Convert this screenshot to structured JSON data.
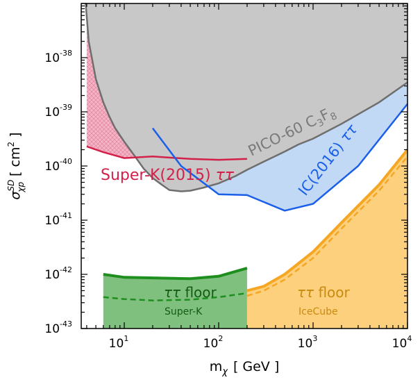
{
  "chart_data": {
    "type": "area",
    "title": "",
    "xlabel": {
      "base": "m",
      "sub": "χ",
      "unit": "[ GeV ]"
    },
    "ylabel": {
      "base": "σ",
      "sup": "SD",
      "sub": "χp",
      "unit": "[ cm",
      "unit_sup": "2",
      "unit_end": " ]"
    },
    "xscale": "log",
    "yscale": "log",
    "xlim": [
      3.5,
      10000
    ],
    "ylim": [
      1e-43,
      1e-37
    ],
    "grid": false,
    "legend": "none",
    "x_ticks": [
      {
        "value": 10,
        "base": "10",
        "exp": "1"
      },
      {
        "value": 100,
        "base": "10",
        "exp": "2"
      },
      {
        "value": 1000,
        "base": "10",
        "exp": "3"
      },
      {
        "value": 10000,
        "base": "10",
        "exp": "4"
      }
    ],
    "y_ticks": [
      {
        "value": 1e-43,
        "base": "10",
        "exp": "-43"
      },
      {
        "value": 1e-42,
        "base": "10",
        "exp": "-42"
      },
      {
        "value": 1e-41,
        "base": "10",
        "exp": "-41"
      },
      {
        "value": 1e-40,
        "base": "10",
        "exp": "-40"
      },
      {
        "value": 1e-39,
        "base": "10",
        "exp": "-39"
      },
      {
        "value": 1e-38,
        "base": "10",
        "exp": "-38"
      }
    ],
    "series": [
      {
        "name": "PICO-60 C3F8",
        "color": "#6e6e6e",
        "fill": "#c8c8c8",
        "style": "solid",
        "x": [
          3.9,
          4.2,
          5,
          6,
          7,
          8,
          10,
          13,
          16,
          20,
          25,
          30,
          40,
          50,
          70,
          100,
          150,
          200,
          300,
          500,
          700,
          1000,
          2000,
          3000,
          5000,
          10000
        ],
        "y": [
          1e-37,
          2e-38,
          4e-39,
          1.5e-39,
          8e-40,
          5e-40,
          2.8e-40,
          1.5e-40,
          9e-41,
          6e-41,
          4.5e-41,
          3.6e-41,
          3.4e-41,
          3.5e-41,
          4e-41,
          4.8e-41,
          6.5e-41,
          8.5e-41,
          1.2e-40,
          1.85e-40,
          2.5e-40,
          3.2e-40,
          6e-40,
          9e-40,
          1.5e-39,
          3.5e-39
        ]
      },
      {
        "name": "Super-K(2015) ττ",
        "color": "#d3204a",
        "fill": "#f4b6c6",
        "style": "solid",
        "x": [
          4,
          6,
          10,
          20,
          50,
          100,
          200
        ],
        "y": [
          2.3e-40,
          1.8e-40,
          1.4e-40,
          1.5e-40,
          1.35e-40,
          1.3e-40,
          1.35e-40
        ]
      },
      {
        "name": "IC(2016) ττ",
        "color": "#1a5fe8",
        "fill": "#c2d9f6",
        "style": "solid",
        "x": [
          20,
          40,
          100,
          200,
          500,
          1000,
          3000,
          10000
        ],
        "y": [
          5e-40,
          1e-40,
          3e-41,
          2.9e-41,
          1.5e-41,
          2e-41,
          1e-40,
          1.4e-39
        ]
      },
      {
        "name": "ττ floor Super-K",
        "color": "#1e8e1e",
        "fill": "#7fc07f",
        "style": "solid",
        "x": [
          6,
          10,
          20,
          50,
          100,
          200
        ],
        "y": [
          1e-42,
          8.8e-43,
          8.6e-43,
          8.3e-43,
          9.2e-43,
          1.3e-42
        ]
      },
      {
        "name": "Super-K dashed",
        "color": "#1e8e1e",
        "style": "dashed",
        "x": [
          6,
          10,
          20,
          50,
          100,
          200
        ],
        "y": [
          3.8e-43,
          3.5e-43,
          3.3e-43,
          3.4e-43,
          3.8e-43,
          4.5e-43
        ]
      },
      {
        "name": "ττ floor IceCube",
        "color": "#f5a623",
        "fill": "#fdd07d",
        "style": "solid",
        "x": [
          200,
          300,
          500,
          1000,
          2000,
          5000,
          10000
        ],
        "y": [
          5e-43,
          6e-43,
          1e-42,
          2.6e-42,
          9e-42,
          4.5e-41,
          2e-40
        ]
      },
      {
        "name": "IceCube dashed",
        "color": "#f5a623",
        "style": "dashed",
        "x": [
          200,
          300,
          500,
          1000,
          2000,
          5000,
          10000
        ],
        "y": [
          4e-43,
          5e-43,
          8e-43,
          2e-42,
          7e-42,
          3.5e-41,
          1.5e-40
        ]
      }
    ],
    "annotations": {
      "pico": {
        "main": "PICO-60 C",
        "sub1": "3",
        "mid": "F",
        "sub2": "8"
      },
      "superk": {
        "main": "Super-K(2015) ",
        "tau": "ττ"
      },
      "ic": {
        "main": "IC(2016) ",
        "tau": "ττ"
      },
      "floor_sk": {
        "tau": "ττ",
        "word": " floor",
        "sub": "Super-K"
      },
      "floor_ic": {
        "tau": "ττ",
        "word": " floor",
        "sub": "IceCube"
      }
    }
  }
}
